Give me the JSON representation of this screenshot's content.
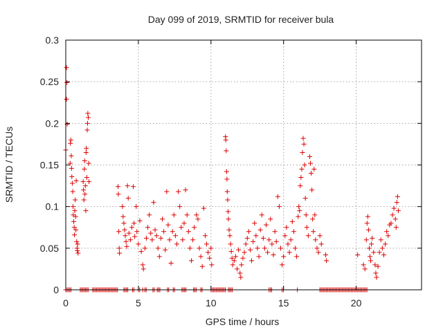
{
  "chart_data": {
    "type": "scatter",
    "title": "Day 099 of 2019, SRMTID for receiver bula",
    "xlabel": "GPS time / hours",
    "ylabel": "SRMTID / TECUs",
    "xlim": [
      0,
      24.5
    ],
    "ylim": [
      0,
      0.3
    ],
    "xticks": [
      0,
      5,
      10,
      15,
      20
    ],
    "xtick_labels": [
      "0",
      "5",
      "10",
      "15",
      "20"
    ],
    "yticks": [
      0,
      0.05,
      0.1,
      0.15,
      0.2,
      0.25,
      0.3
    ],
    "ytick_labels": [
      "0",
      "0.05",
      "0.1",
      "0.15",
      "0.2",
      "0.25",
      "0.3"
    ],
    "grid": true,
    "legend": "none",
    "marker": "plus",
    "marker_color": "#dd0000",
    "series": [
      {
        "name": "SRMTID",
        "points": [
          [
            0.0,
            0.168
          ],
          [
            0.05,
            0.229
          ],
          [
            0.05,
            0.267
          ],
          [
            0.08,
            0.249
          ],
          [
            0.1,
            0.199
          ],
          [
            0.3,
            0.152
          ],
          [
            0.32,
            0.176
          ],
          [
            0.35,
            0.18
          ],
          [
            0.38,
            0.161
          ],
          [
            0.4,
            0.146
          ],
          [
            0.42,
            0.136
          ],
          [
            0.45,
            0.128
          ],
          [
            0.48,
            0.118
          ],
          [
            0.5,
            0.1
          ],
          [
            0.52,
            0.09
          ],
          [
            0.55,
            0.082
          ],
          [
            0.58,
            0.075
          ],
          [
            0.6,
            0.066
          ],
          [
            0.62,
            0.095
          ],
          [
            0.65,
            0.108
          ],
          [
            0.68,
            0.088
          ],
          [
            0.7,
            0.072
          ],
          [
            0.72,
            0.131
          ],
          [
            0.75,
            0.058
          ],
          [
            0.78,
            0.05
          ],
          [
            0.8,
            0.047
          ],
          [
            0.82,
            0.055
          ],
          [
            0.85,
            0.044
          ],
          [
            1.2,
            0.13
          ],
          [
            1.22,
            0.12
          ],
          [
            1.25,
            0.108
          ],
          [
            1.28,
            0.145
          ],
          [
            1.3,
            0.155
          ],
          [
            1.32,
            0.115
          ],
          [
            1.35,
            0.125
          ],
          [
            1.38,
            0.095
          ],
          [
            1.4,
            0.165
          ],
          [
            1.42,
            0.17
          ],
          [
            1.45,
            0.135
          ],
          [
            1.48,
            0.192
          ],
          [
            1.5,
            0.2
          ],
          [
            1.52,
            0.212
          ],
          [
            1.55,
            0.207
          ],
          [
            1.58,
            0.152
          ],
          [
            1.6,
            0.13
          ],
          [
            3.6,
            0.124
          ],
          [
            3.62,
            0.115
          ],
          [
            3.65,
            0.07
          ],
          [
            3.68,
            0.05
          ],
          [
            3.7,
            0.044
          ],
          [
            3.9,
            0.1
          ],
          [
            3.95,
            0.088
          ],
          [
            4.0,
            0.08
          ],
          [
            4.05,
            0.072
          ],
          [
            4.1,
            0.065
          ],
          [
            4.15,
            0.058
          ],
          [
            4.2,
            0.052
          ],
          [
            4.25,
            0.125
          ],
          [
            4.3,
            0.11
          ],
          [
            4.35,
            0.068
          ],
          [
            4.45,
            0.06
          ],
          [
            4.55,
            0.075
          ],
          [
            4.65,
            0.124
          ],
          [
            4.7,
            0.08
          ],
          [
            4.75,
            0.064
          ],
          [
            4.85,
            0.1
          ],
          [
            4.9,
            0.07
          ],
          [
            5.0,
            0.055
          ],
          [
            5.1,
            0.083
          ],
          [
            5.2,
            0.046
          ],
          [
            5.3,
            0.03
          ],
          [
            5.35,
            0.025
          ],
          [
            5.45,
            0.05
          ],
          [
            5.55,
            0.062
          ],
          [
            5.65,
            0.075
          ],
          [
            5.75,
            0.09
          ],
          [
            5.85,
            0.068
          ],
          [
            5.95,
            0.06
          ],
          [
            6.05,
            0.105
          ],
          [
            6.15,
            0.072
          ],
          [
            6.25,
            0.065
          ],
          [
            6.35,
            0.05
          ],
          [
            6.45,
            0.04
          ],
          [
            6.55,
            0.062
          ],
          [
            6.65,
            0.085
          ],
          [
            6.75,
            0.07
          ],
          [
            6.85,
            0.048
          ],
          [
            6.95,
            0.118
          ],
          [
            7.05,
            0.078
          ],
          [
            7.15,
            0.06
          ],
          [
            7.25,
            0.032
          ],
          [
            7.35,
            0.07
          ],
          [
            7.45,
            0.09
          ],
          [
            7.55,
            0.065
          ],
          [
            7.65,
            0.055
          ],
          [
            7.75,
            0.118
          ],
          [
            7.85,
            0.1
          ],
          [
            7.95,
            0.075
          ],
          [
            8.05,
            0.06
          ],
          [
            8.15,
            0.08
          ],
          [
            8.25,
            0.12
          ],
          [
            8.35,
            0.09
          ],
          [
            8.45,
            0.07
          ],
          [
            8.55,
            0.05
          ],
          [
            8.65,
            0.035
          ],
          [
            8.75,
            0.06
          ],
          [
            8.85,
            0.075
          ],
          [
            9.0,
            0.09
          ],
          [
            9.1,
            0.085
          ],
          [
            9.2,
            0.05
          ],
          [
            9.3,
            0.04
          ],
          [
            9.4,
            0.028
          ],
          [
            9.5,
            0.098
          ],
          [
            9.6,
            0.065
          ],
          [
            9.7,
            0.055
          ],
          [
            9.8,
            0.045
          ],
          [
            9.9,
            0.038
          ],
          [
            10.0,
            0.05
          ],
          [
            10.05,
            0.03
          ],
          [
            11.0,
            0.184
          ],
          [
            11.02,
            0.18
          ],
          [
            11.05,
            0.167
          ],
          [
            11.08,
            0.142
          ],
          [
            11.1,
            0.133
          ],
          [
            11.12,
            0.118
          ],
          [
            11.15,
            0.108
          ],
          [
            11.18,
            0.094
          ],
          [
            11.2,
            0.085
          ],
          [
            11.25,
            0.072
          ],
          [
            11.3,
            0.065
          ],
          [
            11.35,
            0.055
          ],
          [
            11.4,
            0.046
          ],
          [
            11.45,
            0.038
          ],
          [
            11.5,
            0.03
          ],
          [
            11.6,
            0.035
          ],
          [
            11.7,
            0.04
          ],
          [
            11.8,
            0.025
          ],
          [
            11.9,
            0.048
          ],
          [
            12.0,
            0.02
          ],
          [
            12.05,
            0.015
          ],
          [
            12.1,
            0.03
          ],
          [
            12.2,
            0.038
          ],
          [
            12.3,
            0.045
          ],
          [
            12.4,
            0.055
          ],
          [
            12.5,
            0.062
          ],
          [
            12.6,
            0.07
          ],
          [
            12.7,
            0.048
          ],
          [
            12.8,
            0.035
          ],
          [
            12.9,
            0.058
          ],
          [
            13.0,
            0.08
          ],
          [
            13.1,
            0.065
          ],
          [
            13.2,
            0.05
          ],
          [
            13.3,
            0.04
          ],
          [
            13.4,
            0.072
          ],
          [
            13.5,
            0.09
          ],
          [
            13.6,
            0.062
          ],
          [
            13.7,
            0.05
          ],
          [
            13.8,
            0.078
          ],
          [
            13.9,
            0.045
          ],
          [
            14.0,
            0.06
          ],
          [
            14.1,
            0.085
          ],
          [
            14.2,
            0.055
          ],
          [
            14.3,
            0.042
          ],
          [
            14.4,
            0.07
          ],
          [
            14.5,
            0.058
          ],
          [
            14.6,
            0.112
          ],
          [
            14.7,
            0.1
          ],
          [
            14.8,
            0.05
          ],
          [
            14.9,
            0.03
          ],
          [
            15.0,
            0.04
          ],
          [
            15.1,
            0.065
          ],
          [
            15.2,
            0.075
          ],
          [
            15.3,
            0.055
          ],
          [
            15.4,
            0.045
          ],
          [
            15.5,
            0.06
          ],
          [
            15.6,
            0.082
          ],
          [
            15.7,
            0.07
          ],
          [
            15.8,
            0.05
          ],
          [
            15.9,
            0.04
          ],
          [
            16.0,
            0.088
          ],
          [
            16.05,
            0.1
          ],
          [
            16.1,
            0.095
          ],
          [
            16.15,
            0.125
          ],
          [
            16.2,
            0.135
          ],
          [
            16.25,
            0.145
          ],
          [
            16.3,
            0.165
          ],
          [
            16.35,
            0.182
          ],
          [
            16.4,
            0.175
          ],
          [
            16.45,
            0.15
          ],
          [
            16.5,
            0.11
          ],
          [
            16.55,
            0.09
          ],
          [
            16.6,
            0.075
          ],
          [
            16.7,
            0.065
          ],
          [
            16.8,
            0.16
          ],
          [
            16.85,
            0.152
          ],
          [
            16.9,
            0.14
          ],
          [
            16.95,
            0.12
          ],
          [
            17.0,
            0.085
          ],
          [
            17.05,
            0.07
          ],
          [
            17.1,
            0.145
          ],
          [
            17.15,
            0.09
          ],
          [
            17.2,
            0.06
          ],
          [
            17.3,
            0.05
          ],
          [
            17.4,
            0.045
          ],
          [
            17.5,
            0.065
          ],
          [
            17.6,
            0.055
          ],
          [
            17.9,
            0.042
          ],
          [
            17.95,
            0.035
          ],
          [
            20.1,
            0.042
          ],
          [
            20.5,
            0.03
          ],
          [
            20.6,
            0.025
          ],
          [
            20.7,
            0.06
          ],
          [
            20.75,
            0.08
          ],
          [
            20.8,
            0.088
          ],
          [
            20.85,
            0.072
          ],
          [
            20.9,
            0.05
          ],
          [
            20.95,
            0.04
          ],
          [
            21.0,
            0.035
          ],
          [
            21.05,
            0.055
          ],
          [
            21.1,
            0.062
          ],
          [
            21.2,
            0.045
          ],
          [
            21.3,
            0.03
          ],
          [
            21.35,
            0.02
          ],
          [
            21.4,
            0.015
          ],
          [
            21.5,
            0.028
          ],
          [
            21.6,
            0.045
          ],
          [
            21.7,
            0.06
          ],
          [
            21.8,
            0.05
          ],
          [
            21.9,
            0.042
          ],
          [
            22.0,
            0.055
          ],
          [
            22.1,
            0.07
          ],
          [
            22.2,
            0.065
          ],
          [
            22.3,
            0.078
          ],
          [
            22.4,
            0.08
          ],
          [
            22.5,
            0.09
          ],
          [
            22.6,
            0.098
          ],
          [
            22.7,
            0.085
          ],
          [
            22.75,
            0.075
          ],
          [
            22.8,
            0.105
          ],
          [
            22.85,
            0.112
          ],
          [
            22.9,
            0.095
          ]
        ],
        "zero_intervals": [
          [
            0.0,
            0.4
          ],
          [
            1.0,
            1.6
          ],
          [
            1.85,
            3.6
          ],
          [
            4.0,
            4.3
          ],
          [
            4.6,
            4.7
          ],
          [
            5.0,
            5.1
          ],
          [
            5.3,
            5.35
          ],
          [
            5.45,
            5.55
          ],
          [
            6.0,
            6.1
          ],
          [
            6.3,
            6.5
          ],
          [
            7.0,
            7.1
          ],
          [
            7.4,
            7.5
          ],
          [
            8.0,
            8.3
          ],
          [
            8.8,
            9.0
          ],
          [
            9.3,
            9.4
          ],
          [
            10.0,
            11.0
          ],
          [
            11.2,
            11.5
          ],
          [
            14.0,
            14.2
          ],
          [
            14.9,
            15.0
          ],
          [
            15.95,
            16.0
          ],
          [
            17.5,
            20.8
          ]
        ]
      }
    ]
  }
}
